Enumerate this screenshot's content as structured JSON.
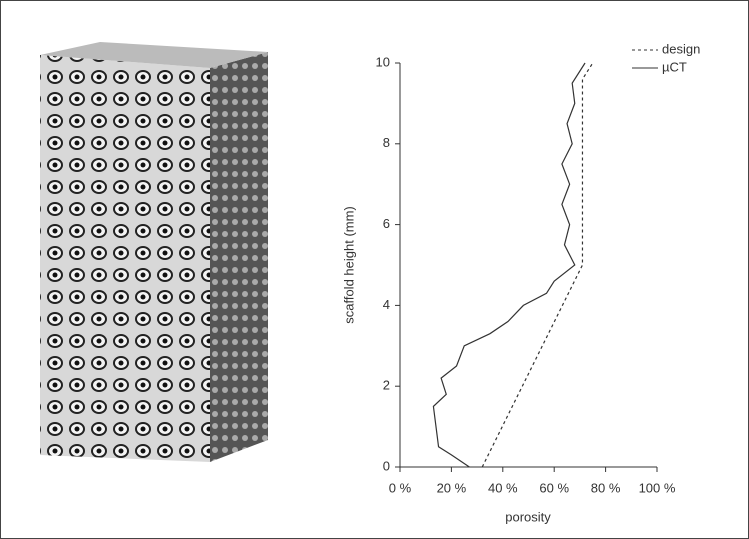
{
  "chart_data": {
    "type": "line",
    "xlabel": "porosity",
    "ylabel": "scaffold height (mm)",
    "xlim": [
      0,
      100
    ],
    "ylim": [
      0,
      10
    ],
    "xticks": [
      {
        "value": 0,
        "label": "0 %"
      },
      {
        "value": 20,
        "label": "20 %"
      },
      {
        "value": 40,
        "label": "40 %"
      },
      {
        "value": 60,
        "label": "60 %"
      },
      {
        "value": 80,
        "label": "80 %"
      },
      {
        "value": 100,
        "label": "100 %"
      }
    ],
    "yticks": [
      0,
      2,
      4,
      6,
      8,
      10
    ],
    "legend": "top-right",
    "series": [
      {
        "name": "design",
        "color": "#333333",
        "dash": true,
        "x": [
          32,
          71,
          71,
          75
        ],
        "values": [
          0,
          5,
          9.6,
          10
        ]
      },
      {
        "name": "µCT",
        "color": "#333333",
        "dash": false,
        "x": [
          27,
          20,
          15,
          14,
          13,
          18,
          16,
          22,
          25,
          35,
          42,
          48,
          57,
          60,
          68,
          64,
          66,
          63,
          66,
          63,
          67,
          65,
          68,
          67,
          72
        ],
        "values": [
          0,
          0.3,
          0.5,
          1,
          1.5,
          1.8,
          2.2,
          2.5,
          3,
          3.3,
          3.6,
          4,
          4.3,
          4.6,
          5,
          5.5,
          6,
          6.5,
          7,
          7.5,
          8,
          8.5,
          9,
          9.5,
          10
        ]
      }
    ]
  }
}
